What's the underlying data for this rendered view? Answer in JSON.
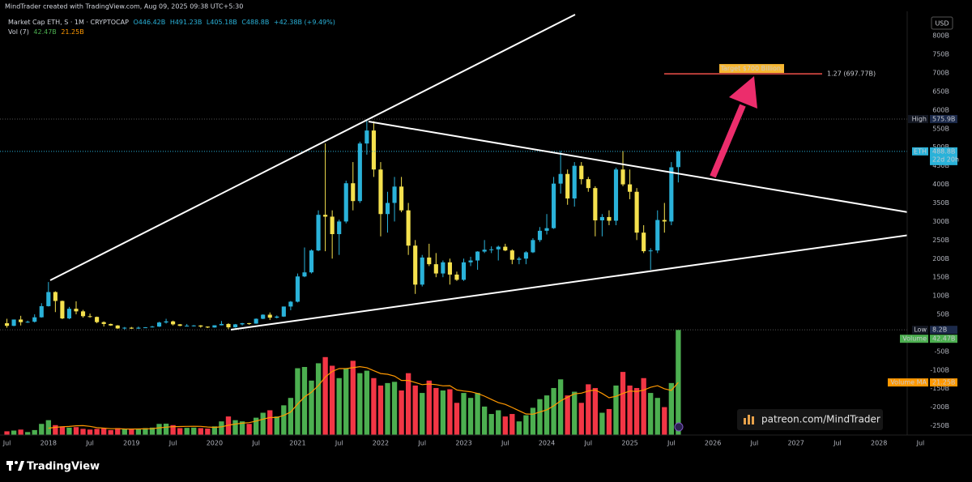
{
  "header": {
    "credit": "MindTrader created with TradingView.com, Aug 09, 2025 09:38 UTC+5:30",
    "symbol": "Market Cap ETH, S · 1M · CRYPTOCAP",
    "open": "O446.42B",
    "high": "H491.23B",
    "low": "L405.18B",
    "close": "C488.8B",
    "change": "+42.38B (+9.49%)",
    "vol_title": "Vol (7)",
    "vol": "42.47B",
    "vol_ma": "21.25B"
  },
  "watermark": "patreon.com/MindTrader",
  "footer": {
    "brand": "TradingView"
  },
  "chart_data": {
    "type": "candlestick",
    "currency": "USD",
    "x": [
      "2017-07",
      "2017-08",
      "2017-09",
      "2017-10",
      "2017-11",
      "2017-12",
      "2018-01",
      "2018-02",
      "2018-03",
      "2018-04",
      "2018-05",
      "2018-06",
      "2018-07",
      "2018-08",
      "2018-09",
      "2018-10",
      "2018-11",
      "2018-12",
      "2019-01",
      "2019-02",
      "2019-03",
      "2019-04",
      "2019-05",
      "2019-06",
      "2019-07",
      "2019-08",
      "2019-09",
      "2019-10",
      "2019-11",
      "2019-12",
      "2020-01",
      "2020-02",
      "2020-03",
      "2020-04",
      "2020-05",
      "2020-06",
      "2020-07",
      "2020-08",
      "2020-09",
      "2020-10",
      "2020-11",
      "2020-12",
      "2021-01",
      "2021-02",
      "2021-03",
      "2021-04",
      "2021-05",
      "2021-06",
      "2021-07",
      "2021-08",
      "2021-09",
      "2021-10",
      "2021-11",
      "2021-12",
      "2022-01",
      "2022-02",
      "2022-03",
      "2022-04",
      "2022-05",
      "2022-06",
      "2022-07",
      "2022-08",
      "2022-09",
      "2022-10",
      "2022-11",
      "2022-12",
      "2023-01",
      "2023-02",
      "2023-03",
      "2023-04",
      "2023-05",
      "2023-06",
      "2023-07",
      "2023-08",
      "2023-09",
      "2023-10",
      "2023-11",
      "2023-12",
      "2024-01",
      "2024-02",
      "2024-03",
      "2024-04",
      "2024-05",
      "2024-06",
      "2024-07",
      "2024-08",
      "2024-09",
      "2024-10",
      "2024-11",
      "2024-12",
      "2025-01",
      "2025-02",
      "2025-03",
      "2025-04",
      "2025-05",
      "2025-06",
      "2025-07",
      "2025-08"
    ],
    "open": [
      26,
      19,
      36,
      29,
      30,
      42,
      72,
      110,
      86,
      39,
      65,
      58,
      45,
      43,
      29,
      24,
      20,
      12,
      14,
      11.5,
      14,
      15,
      17,
      28,
      31,
      23,
      19,
      19.5,
      20,
      17,
      14.5,
      20.5,
      24,
      15,
      23,
      26,
      25,
      38,
      49,
      41,
      44,
      71,
      84,
      152,
      163,
      222,
      318,
      313,
      266,
      300,
      403,
      355,
      510,
      545,
      440,
      320,
      350,
      394,
      330,
      235,
      130,
      203,
      185,
      160,
      190,
      157,
      143,
      190,
      195,
      219,
      224,
      225,
      232,
      222,
      197,
      200,
      217,
      250,
      275,
      282,
      402,
      428,
      362,
      450,
      414,
      390,
      303,
      312,
      302,
      440,
      400,
      380,
      270,
      220,
      222,
      304,
      300,
      446.42
    ],
    "high": [
      38,
      36,
      46,
      33,
      50,
      80,
      137,
      112,
      87,
      70,
      85,
      62,
      52,
      44,
      31,
      25,
      21,
      16,
      16,
      17,
      15.5,
      19,
      30,
      38,
      33,
      24,
      24,
      21,
      21,
      17.5,
      20.5,
      32,
      26,
      24,
      27,
      27,
      39,
      50,
      55,
      47,
      71,
      86,
      160,
      230,
      225,
      330,
      510,
      330,
      305,
      410,
      460,
      515,
      575.9,
      570,
      460,
      380,
      420,
      420,
      350,
      250,
      210,
      240,
      215,
      195,
      200,
      165,
      200,
      205,
      220,
      250,
      233,
      235,
      240,
      225,
      205,
      220,
      255,
      285,
      320,
      420,
      490,
      440,
      460,
      460,
      420,
      395,
      320,
      330,
      445,
      490,
      440,
      390,
      290,
      228,
      330,
      350,
      460,
      491.23
    ],
    "low": [
      14,
      18,
      20,
      27,
      28,
      41,
      71,
      56,
      37,
      37,
      50,
      41,
      41,
      26,
      17,
      19,
      11,
      8.2,
      11,
      11,
      13,
      14.5,
      16,
      25,
      20,
      18,
      17,
      17,
      14,
      13,
      14,
      20,
      10,
      14,
      20,
      22,
      24.5,
      37,
      35,
      39,
      43,
      61,
      82,
      150,
      160,
      220,
      220,
      200,
      210,
      295,
      330,
      350,
      480,
      420,
      260,
      270,
      300,
      325,
      210,
      105,
      125,
      180,
      150,
      150,
      130,
      140,
      140,
      180,
      170,
      215,
      215,
      195,
      220,
      185,
      185,
      185,
      215,
      245,
      265,
      280,
      375,
      345,
      340,
      400,
      380,
      260,
      260,
      290,
      290,
      395,
      360,
      250,
      215,
      170,
      215,
      270,
      290,
      405.18
    ],
    "close": [
      19,
      36,
      29,
      30,
      42,
      72,
      110,
      86,
      39,
      65,
      58,
      45,
      43,
      29,
      24,
      20,
      12,
      14,
      11.5,
      14,
      15,
      17,
      28,
      31,
      23,
      19,
      19.5,
      20,
      17,
      14.5,
      20.5,
      24,
      15,
      23,
      26,
      25,
      38,
      49,
      41,
      44,
      71,
      84,
      152,
      163,
      222,
      318,
      313,
      266,
      300,
      403,
      355,
      510,
      545,
      440,
      320,
      350,
      394,
      330,
      235,
      130,
      203,
      185,
      160,
      190,
      157,
      143,
      190,
      195,
      219,
      224,
      225,
      232,
      222,
      197,
      200,
      217,
      250,
      275,
      282,
      402,
      428,
      362,
      450,
      414,
      390,
      303,
      312,
      302,
      440,
      400,
      380,
      270,
      220,
      222,
      304,
      300,
      446,
      488.8
    ],
    "up_color": "#2ab2d9",
    "down_color": "#f5e14e",
    "xlim": [
      "2017-06",
      "2028-08"
    ],
    "xticks": [
      {
        "value": "2017-07",
        "label": "Jul"
      },
      {
        "value": "2018-01",
        "label": "2018"
      },
      {
        "value": "2018-07",
        "label": "Jul"
      },
      {
        "value": "2019-01",
        "label": "2019"
      },
      {
        "value": "2019-07",
        "label": "Jul"
      },
      {
        "value": "2020-01",
        "label": "2020"
      },
      {
        "value": "2020-07",
        "label": "Jul"
      },
      {
        "value": "2021-01",
        "label": "2021"
      },
      {
        "value": "2021-07",
        "label": "Jul"
      },
      {
        "value": "2022-01",
        "label": "2022"
      },
      {
        "value": "2022-07",
        "label": "Jul"
      },
      {
        "value": "2023-01",
        "label": "2023"
      },
      {
        "value": "2023-07",
        "label": "Jul"
      },
      {
        "value": "2024-01",
        "label": "2024"
      },
      {
        "value": "2024-07",
        "label": "Jul"
      },
      {
        "value": "2025-01",
        "label": "2025"
      },
      {
        "value": "2025-07",
        "label": "Jul"
      },
      {
        "value": "2026-01",
        "label": "2026"
      },
      {
        "value": "2026-07",
        "label": "Jul"
      },
      {
        "value": "2027-01",
        "label": "2027"
      },
      {
        "value": "2027-07",
        "label": "Jul"
      },
      {
        "value": "2028-01",
        "label": "2028"
      },
      {
        "value": "2028-07",
        "label": "Jul"
      }
    ],
    "ylim": [
      -275,
      831
    ],
    "yticks": [
      {
        "value": 800,
        "label": "800B"
      },
      {
        "value": 750,
        "label": "750B"
      },
      {
        "value": 700,
        "label": "700B"
      },
      {
        "value": 650,
        "label": "650B"
      },
      {
        "value": 600,
        "label": "600B"
      },
      {
        "value": 550,
        "label": "550B"
      },
      {
        "value": 500,
        "label": "500B"
      },
      {
        "value": 450,
        "label": "450B"
      },
      {
        "value": 400,
        "label": "400B"
      },
      {
        "value": 350,
        "label": "350B"
      },
      {
        "value": 300,
        "label": "300B"
      },
      {
        "value": 250,
        "label": "250B"
      },
      {
        "value": 200,
        "label": "200B"
      },
      {
        "value": 150,
        "label": "150B"
      },
      {
        "value": 100,
        "label": "100B"
      },
      {
        "value": 50,
        "label": "50B"
      },
      {
        "value": -50,
        "label": "-50B"
      },
      {
        "value": -100,
        "label": "-100B"
      },
      {
        "value": -150,
        "label": "-150B"
      },
      {
        "value": -200,
        "label": "-200B"
      },
      {
        "value": -250,
        "label": "-250B"
      }
    ],
    "price_tags": [
      {
        "tag": "High",
        "value": 575.9,
        "label": "575.9B",
        "color": "#1c2a4a"
      },
      {
        "tag": "ETH",
        "value": 488.8,
        "label": "488.8B",
        "countdown": "22d 20h",
        "color": "#2ab2d9"
      },
      {
        "tag": "Low",
        "value": 8.2,
        "label": "8.2B",
        "color": "#1c2a4a"
      }
    ],
    "volume": {
      "name": "Vol (7)",
      "up_color": "#4caf50",
      "down_color": "#f23645",
      "y2lim": [
        0,
        166
      ],
      "values": [
        1.5,
        1.8,
        2.2,
        1.2,
        2.0,
        4.5,
        6.0,
        4.0,
        3.5,
        3.0,
        3.2,
        2.5,
        2.2,
        2.5,
        2.6,
        2.0,
        2.8,
        2.6,
        2.3,
        2.4,
        2.8,
        3.0,
        4.5,
        4.6,
        4.0,
        2.8,
        2.9,
        3.0,
        2.8,
        2.6,
        3.5,
        5.5,
        7.5,
        6.0,
        5.5,
        4.5,
        7.0,
        9.0,
        10.0,
        7.5,
        12.0,
        15.0,
        27,
        27.5,
        22,
        29,
        31.5,
        28,
        23,
        27,
        30,
        25,
        26,
        23,
        20,
        21,
        21.5,
        18,
        25,
        20,
        17,
        22,
        19,
        18,
        18.5,
        13,
        17,
        15,
        17,
        11.5,
        8.5,
        10,
        7.5,
        8.5,
        5.5,
        8,
        11,
        14.5,
        16,
        19,
        22.5,
        16,
        17.5,
        13,
        20.5,
        19,
        9,
        10.5,
        20,
        25.5,
        20,
        19,
        23,
        17,
        15,
        11.28,
        21,
        42.47
      ]
    },
    "volume_ma": {
      "name": "Volume MA",
      "color": "#ff9800",
      "values": [
        null,
        null,
        null,
        null,
        null,
        null,
        2.74,
        3.1,
        3.34,
        3.46,
        3.74,
        3.81,
        3.49,
        2.99,
        2.79,
        2.57,
        2.54,
        2.46,
        2.43,
        2.46,
        2.5,
        2.56,
        2.91,
        3.17,
        3.37,
        3.44,
        3.51,
        3.54,
        3.51,
        3.24,
        3.09,
        3.3,
        3.97,
        4.41,
        4.77,
        5.01,
        5.64,
        6.43,
        7.07,
        7.07,
        7.93,
        9.29,
        12.5,
        15.43,
        17.29,
        20,
        23.43,
        25.71,
        26.86,
        26.86,
        27.21,
        27.64,
        27.21,
        26,
        24.86,
        24.57,
        23.79,
        22.07,
        22.07,
        21.21,
        20.36,
        20.64,
        20.36,
        19.86,
        19.93,
        18.21,
        17.79,
        17.5,
        16.79,
        15.71,
        14.36,
        13.14,
        12.36,
        11.14,
        9.79,
        8.5,
        8.43,
        9.29,
        10.14,
        11.79,
        13.79,
        15.29,
        16.64,
        16.93,
        17.79,
        18.21,
        16.79,
        15.07,
        15.64,
        16.79,
        17.79,
        17.57,
        18.14,
        19.29,
        19.93,
        18.68,
        18.04,
        21.25
      ]
    },
    "volume_tags": [
      {
        "tag": "Volume",
        "value": 42.47,
        "label": "42.47B",
        "color": "#4caf50"
      },
      {
        "tag": "Volume MA",
        "value": 21.25,
        "label": "21.25B",
        "color": "#ff9800"
      }
    ],
    "fib": {
      "value": 697.77,
      "label": "1.27 (697.77B)",
      "target": "Target $700 Billion.",
      "color": "#f0504a"
    }
  }
}
